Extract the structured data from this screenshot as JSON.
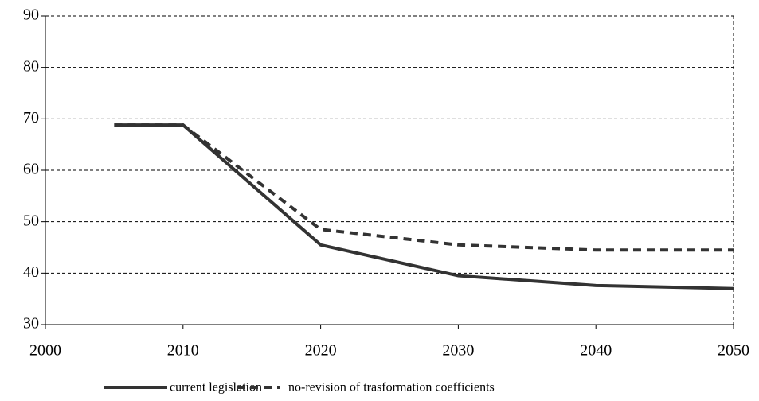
{
  "chart_data": {
    "type": "line",
    "x": [
      2005,
      2010,
      2020,
      2030,
      2040,
      2050
    ],
    "series": [
      {
        "name": "current legislation",
        "color": "#333333",
        "style": "solid",
        "values": [
          68.8,
          68.8,
          45.5,
          39.5,
          37.6,
          37.0
        ]
      },
      {
        "name": "no-revision of trasformation coefficients",
        "color": "#333333",
        "style": "dashed",
        "values": [
          68.8,
          68.8,
          48.5,
          45.5,
          44.5,
          44.5
        ]
      }
    ],
    "xlim": [
      2000,
      2050
    ],
    "xticks": [
      2000,
      2010,
      2020,
      2030,
      2040,
      2050
    ],
    "ylim": [
      30,
      90
    ],
    "yticks": [
      30,
      40,
      50,
      60,
      70,
      80,
      90
    ],
    "grid": true,
    "legend": "bottom"
  }
}
